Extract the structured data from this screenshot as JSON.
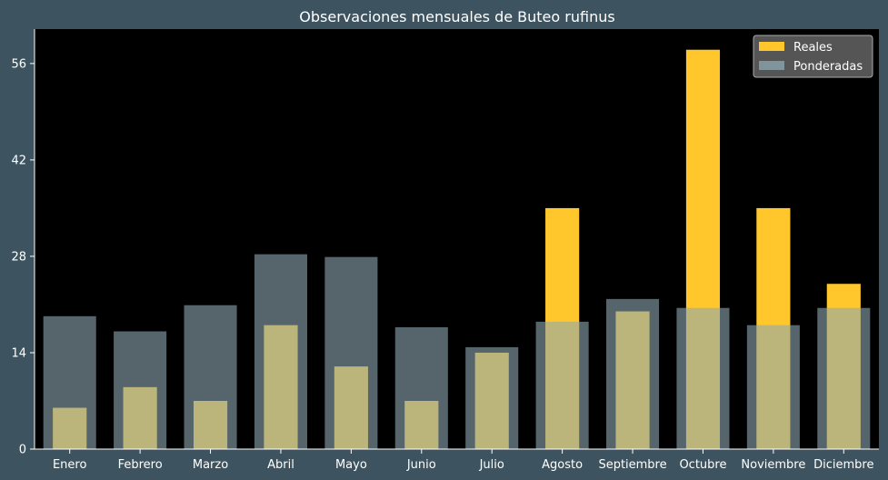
{
  "chart_data": {
    "type": "bar",
    "title": "Observaciones mensuales de Buteo rufinus",
    "xlabel": "",
    "ylabel": "",
    "categories": [
      "Enero",
      "Febrero",
      "Marzo",
      "Abril",
      "Mayo",
      "Junio",
      "Julio",
      "Agosto",
      "Septiembre",
      "Octubre",
      "Noviembre",
      "Diciembre"
    ],
    "series": [
      {
        "name": "Reales",
        "values": [
          6,
          9,
          7,
          18,
          12,
          7,
          14,
          35,
          20,
          58,
          35,
          24
        ],
        "color": "#ffc72c"
      },
      {
        "name": "Ponderadas",
        "values": [
          19.3,
          17.1,
          20.9,
          28.3,
          27.9,
          17.7,
          14.8,
          18.5,
          21.8,
          20.5,
          18.0,
          20.5
        ],
        "color": "#8ea9b3"
      }
    ],
    "ylim": [
      0,
      61
    ],
    "yticks": [
      0,
      14,
      28,
      42,
      56
    ],
    "legend": "top-right",
    "grid": false,
    "colors": {
      "background": "#3d5460",
      "plot": "#000000",
      "text": "#ffffff"
    }
  }
}
